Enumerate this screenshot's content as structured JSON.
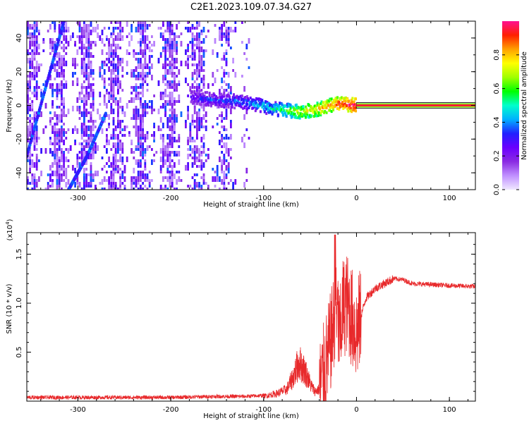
{
  "title": "C2E1.2023.109.07.34.G27",
  "chart_data": [
    {
      "type": "heatmap",
      "xlabel": "Height of straight line (km)",
      "ylabel": "Frequency (Hz)",
      "xlim": [
        -355,
        128
      ],
      "ylim": [
        -50,
        50
      ],
      "xticks": [
        -300,
        -200,
        -100,
        0,
        100
      ],
      "yticks": [
        -40,
        -20,
        0,
        20,
        40
      ],
      "colorbar": {
        "label": "Normalized spectral amplitude",
        "ticks": [
          0.0,
          0.2,
          0.4,
          0.6,
          0.8
        ],
        "range": [
          0,
          1
        ],
        "colors": [
          "#f0e8ff",
          "#c090ff",
          "#8a2be2",
          "#6a00ff",
          "#2020ff",
          "#00b0ff",
          "#00ffcc",
          "#00ff00",
          "#a0ff00",
          "#ffff00",
          "#ffa000",
          "#ff2000",
          "#ff1090"
        ]
      },
      "features": {
        "steady_line": {
          "x_range": [
            0,
            128
          ],
          "freq": 0,
          "amplitude": 1.0
        },
        "converging_track": {
          "x": [
            -178,
            -150,
            -120,
            -90,
            -60,
            -40,
            -20,
            0
          ],
          "freq": [
            5,
            3,
            2,
            -2,
            -4,
            -2,
            1,
            0
          ],
          "amplitude": [
            0.3,
            0.35,
            0.4,
            0.5,
            0.7,
            0.8,
            0.9,
            1.0
          ]
        },
        "diagonal_tracks": [
          {
            "x": [
              -355,
              -335,
              -315
            ],
            "freq": [
              -30,
              10,
              50
            ]
          },
          {
            "x": [
              -310,
              -290,
              -270
            ],
            "freq": [
              -50,
              -30,
              -5
            ]
          }
        ],
        "noise_region": {
          "x_range": [
            -355,
            -115
          ],
          "freq_range": [
            -50,
            50
          ]
        }
      }
    },
    {
      "type": "line",
      "xlabel": "Height of straight line (km)",
      "ylabel": "SNR (10 * v/v)",
      "y_multiplier": "(x10",
      "y_multiplier_exp": "4",
      "y_multiplier_close": ")",
      "xlim": [
        -355,
        128
      ],
      "ylim": [
        0,
        1.72
      ],
      "xticks": [
        -300,
        -200,
        -100,
        0,
        100
      ],
      "yticks": [
        0.5,
        1.0,
        1.5
      ],
      "ytick_labels": [
        "0.5",
        "1.0",
        "1.5"
      ],
      "color": "#e8292b",
      "series": [
        {
          "x": [
            -355,
            -300,
            -250,
            -200,
            -150,
            -120,
            -100,
            -85,
            -75,
            -68,
            -62,
            -55,
            -50,
            -45,
            -40,
            -35,
            -30,
            -25,
            -22,
            -18,
            -15,
            -10,
            -5,
            0,
            10,
            20,
            30,
            40,
            50,
            60,
            80,
            100,
            128
          ],
          "values": [
            0.03,
            0.03,
            0.03,
            0.03,
            0.04,
            0.04,
            0.05,
            0.08,
            0.12,
            0.25,
            0.4,
            0.3,
            0.18,
            0.1,
            0.12,
            0.3,
            0.5,
            0.75,
            1.1,
            0.6,
            0.95,
            1.0,
            0.85,
            0.7,
            1.05,
            1.15,
            1.2,
            1.25,
            1.24,
            1.2,
            1.19,
            1.18,
            1.17
          ]
        }
      ]
    }
  ]
}
